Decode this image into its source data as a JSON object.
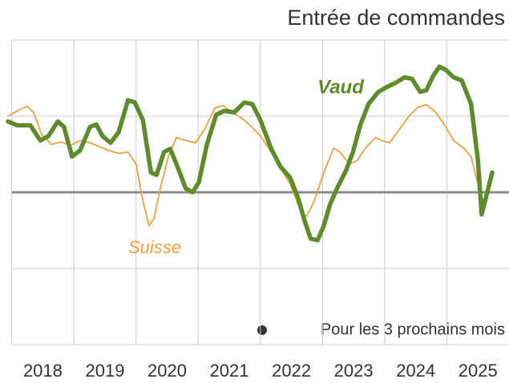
{
  "chart_data": {
    "type": "line",
    "title": "Entrée de commandes",
    "legend_note": "Pour les 3 prochains mois",
    "xlim": [
      2017.94,
      2026
    ],
    "xticks": [
      2018,
      2019,
      2020,
      2021,
      2022,
      2023,
      2024,
      2025
    ],
    "ylim": [
      -2,
      2
    ],
    "yticks": [
      -2,
      -1,
      0,
      1,
      2
    ],
    "grid": true,
    "series": [
      {
        "name": "Suisse",
        "color": "#f0a040",
        "x": [
          2017.94,
          2018.09,
          2018.25,
          2018.35,
          2018.48,
          2018.64,
          2018.79,
          2018.95,
          2019.1,
          2019.26,
          2019.41,
          2019.56,
          2019.72,
          2019.87,
          2020.0,
          2020.11,
          2020.21,
          2020.29,
          2020.39,
          2020.52,
          2020.65,
          2020.8,
          2020.96,
          2021.11,
          2021.27,
          2021.4,
          2021.55,
          2021.71,
          2021.86,
          2022.02,
          2022.17,
          2022.32,
          2022.48,
          2022.63,
          2022.74,
          2022.87,
          2023.02,
          2023.18,
          2023.28,
          2023.43,
          2023.56,
          2023.69,
          2023.85,
          2023.95,
          2024.08,
          2024.23,
          2024.39,
          2024.54,
          2024.67,
          2024.8,
          2024.96,
          2025.11,
          2025.27,
          2025.39,
          2025.5,
          2025.58
        ],
        "values": [
          1.0,
          1.07,
          1.13,
          1.05,
          0.76,
          0.63,
          0.66,
          0.62,
          0.68,
          0.65,
          0.6,
          0.55,
          0.51,
          0.53,
          0.37,
          -0.11,
          -0.44,
          -0.34,
          0.05,
          0.47,
          0.72,
          0.68,
          0.65,
          0.84,
          1.11,
          1.14,
          1.05,
          0.97,
          0.86,
          0.72,
          0.53,
          0.32,
          0.11,
          -0.21,
          -0.32,
          -0.11,
          0.26,
          0.58,
          0.53,
          0.37,
          0.42,
          0.58,
          0.72,
          0.68,
          0.65,
          0.82,
          1.0,
          1.12,
          1.15,
          1.07,
          0.89,
          0.68,
          0.58,
          0.47,
          0.11,
          -0.11
        ]
      },
      {
        "name": "Vaud",
        "color": "#5e8c2c",
        "x": [
          2017.94,
          2018.09,
          2018.3,
          2018.46,
          2018.59,
          2018.74,
          2018.84,
          2018.97,
          2019.1,
          2019.26,
          2019.36,
          2019.46,
          2019.59,
          2019.72,
          2019.87,
          2019.98,
          2020.11,
          2020.24,
          2020.33,
          2020.45,
          2020.55,
          2020.65,
          2020.8,
          2020.91,
          2021.01,
          2021.14,
          2021.29,
          2021.42,
          2021.58,
          2021.74,
          2021.87,
          2022.0,
          2022.17,
          2022.32,
          2022.48,
          2022.61,
          2022.71,
          2022.81,
          2022.92,
          2023.02,
          2023.12,
          2023.25,
          2023.38,
          2023.49,
          2023.61,
          2023.74,
          2023.9,
          2024.05,
          2024.18,
          2024.32,
          2024.44,
          2024.57,
          2024.67,
          2024.78,
          2024.88,
          2024.98,
          2025.11,
          2025.24,
          2025.39,
          2025.5,
          2025.56,
          2025.65,
          2025.73
        ],
        "values": [
          0.93,
          0.88,
          0.88,
          0.68,
          0.74,
          0.93,
          0.86,
          0.47,
          0.55,
          0.86,
          0.89,
          0.74,
          0.65,
          0.79,
          1.21,
          1.18,
          0.95,
          0.26,
          0.23,
          0.53,
          0.57,
          0.37,
          0.05,
          0,
          0.13,
          0.63,
          1.02,
          1.07,
          1.05,
          1.18,
          1.16,
          0.95,
          0.58,
          0.34,
          0.19,
          -0.08,
          -0.37,
          -0.61,
          -0.63,
          -0.44,
          -0.16,
          0.08,
          0.29,
          0.53,
          0.89,
          1.16,
          1.32,
          1.39,
          1.44,
          1.51,
          1.49,
          1.32,
          1.34,
          1.53,
          1.65,
          1.61,
          1.51,
          1.47,
          1.16,
          0.42,
          -0.29,
          0,
          0.26
        ]
      }
    ]
  }
}
